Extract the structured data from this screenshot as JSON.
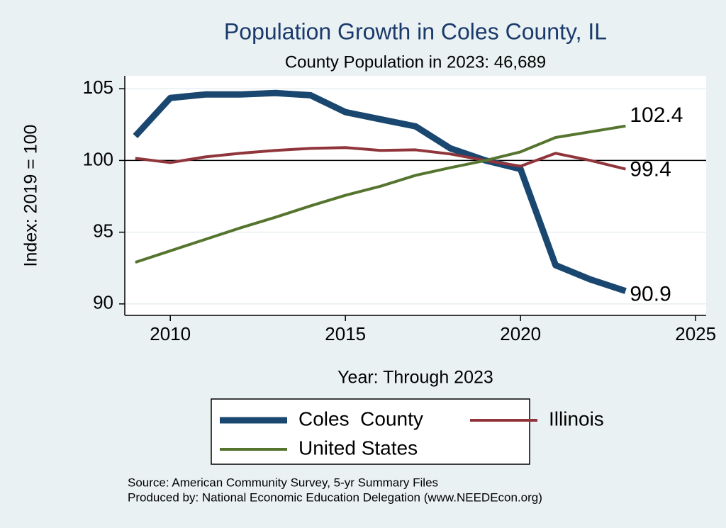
{
  "chart_data": {
    "type": "line",
    "title": "Population Growth in Coles County, IL",
    "subtitle": "County Population in 2023: 46,689",
    "x_label": "Year: Through 2023",
    "y_label": "Index: 2019 = 100",
    "x": [
      2009,
      2010,
      2011,
      2012,
      2013,
      2014,
      2015,
      2016,
      2017,
      2018,
      2019,
      2020,
      2021,
      2022,
      2023
    ],
    "series": [
      {
        "name": "Coles  County",
        "color": "#1a476f",
        "values": [
          101.7,
          104.36,
          104.6,
          104.6,
          104.7,
          104.55,
          103.37,
          102.87,
          102.38,
          100.84,
          100,
          99.4,
          92.7,
          91.7,
          90.9
        ]
      },
      {
        "name": "Illinois",
        "color": "#90353b",
        "values": [
          100.15,
          99.85,
          100.25,
          100.5,
          100.7,
          100.84,
          100.9,
          100.7,
          100.74,
          100.45,
          100,
          99.6,
          100.5,
          100.0,
          99.4
        ]
      },
      {
        "name": "United States",
        "color": "#55752f",
        "values": [
          92.9,
          93.7,
          94.5,
          95.3,
          96.04,
          96.83,
          97.57,
          98.2,
          98.96,
          99.5,
          100,
          100.6,
          101.6,
          102.0,
          102.4
        ]
      }
    ],
    "xlim": [
      2008.7,
      2025.3
    ],
    "xticks": [
      2010,
      2015,
      2020,
      2025
    ],
    "ylim": [
      89.2,
      105.9
    ],
    "yticks": [
      90,
      95,
      100,
      105
    ],
    "grid": true,
    "reference_line": 100,
    "legend_position": "bottom",
    "notes": [
      "Source: American Community Survey, 5-yr Summary Files",
      "Produced by: National Economic Education Delegation (www.NEEDEcon.org)"
    ]
  }
}
